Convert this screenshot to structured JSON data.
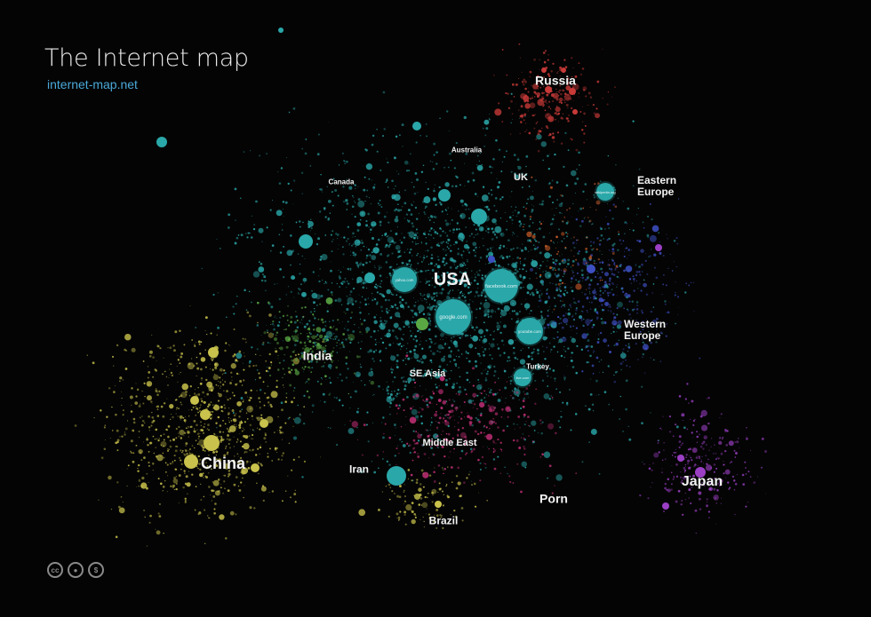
{
  "header": {
    "title": "The Internet map",
    "site_link": "internet-map.net"
  },
  "colors": {
    "background": "#040404",
    "usa": "#2aa7a9",
    "china": "#c9c24c",
    "japan": "#9b3fc4",
    "russia": "#c83a38",
    "europe": "#3d4fc2",
    "india": "#5aa844",
    "porn": "#c8317a",
    "orange": "#d0602a"
  },
  "regions": [
    {
      "id": "russia",
      "label": "Russia"
    },
    {
      "id": "australia",
      "label": "Australia"
    },
    {
      "id": "uk",
      "label": "UK"
    },
    {
      "id": "canada",
      "label": "Canada"
    },
    {
      "id": "eastern-europe",
      "label": "Eastern Europe"
    },
    {
      "id": "usa",
      "label": "USA"
    },
    {
      "id": "india",
      "label": "India"
    },
    {
      "id": "western-europe",
      "label": "Western Europe"
    },
    {
      "id": "se-asia",
      "label": "SE Asia"
    },
    {
      "id": "turkey",
      "label": "Turkey"
    },
    {
      "id": "middle-east",
      "label": "Middle East"
    },
    {
      "id": "china",
      "label": "China"
    },
    {
      "id": "iran",
      "label": "Iran"
    },
    {
      "id": "japan",
      "label": "Japan"
    },
    {
      "id": "porn",
      "label": "Porn"
    },
    {
      "id": "brazil",
      "label": "Brazil"
    }
  ],
  "sites": [
    {
      "label": "google.com"
    },
    {
      "label": "facebook.com"
    },
    {
      "label": "youtube.com"
    },
    {
      "label": "yahoo.com"
    },
    {
      "label": "live.com"
    },
    {
      "label": "wikipedia.org"
    }
  ],
  "license_icons": [
    "creative-commons-icon",
    "attribution-icon",
    "non-commercial-icon"
  ]
}
